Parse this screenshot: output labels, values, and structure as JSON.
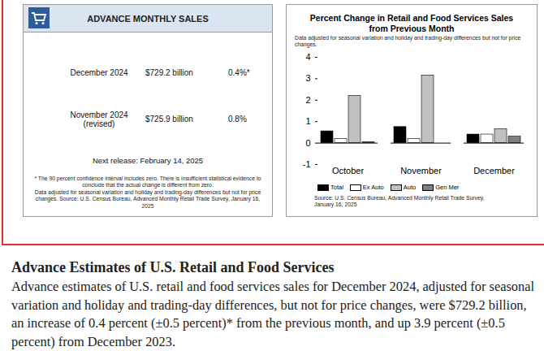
{
  "panel": {
    "title": "ADVANCE MONTHLY SALES",
    "rows": [
      {
        "label": "December 2024",
        "amount": "$729.2 billion",
        "change": "0.4%*"
      },
      {
        "label": "November 2024",
        "label_note": "(revised)",
        "amount": "$725.9 billion",
        "change": "0.8%"
      }
    ],
    "next_release": "Next release: February 14, 2025",
    "footnotes": [
      "* The 90 percent confidence interval includes zero. There is insufficient statistical evidence to conclude that the actual change is different from zero.",
      "Data adjusted for seasonal variation and holiday and trading-day differences but not for price changes. Source: U.S. Census Bureau, Advanced Monthly Retail Trade Survey, January 16, 2025"
    ]
  },
  "chart_data": {
    "type": "bar",
    "title": "Percent Change in Retail and Food Services Sales from Previous Month",
    "subtitle": "Data adjusted for seasonal variation and holiday and trading-day differences but not for price changes.",
    "source": "Source: U.S. Census Bureau, Advanced Monthly Retail Trade Survey, January 16, 2025",
    "categories": [
      "October",
      "November",
      "December"
    ],
    "series": [
      {
        "name": "Total",
        "color": "#000000",
        "values": [
          0.55,
          0.75,
          0.4
        ]
      },
      {
        "name": "Ex Auto",
        "color": "#ffffff",
        "values": [
          0.2,
          0.2,
          0.4
        ]
      },
      {
        "name": "Auto",
        "color": "#c0c0c0",
        "values": [
          2.2,
          3.15,
          0.65
        ]
      },
      {
        "name": "Gen Mer",
        "color": "#808080",
        "values": [
          0.05,
          0.0,
          0.3
        ]
      }
    ],
    "ylim": [
      -1,
      4
    ],
    "yticks": [
      -1,
      0,
      1,
      2,
      3,
      4
    ],
    "grid": false,
    "legend": "bottom"
  },
  "article": {
    "heading": "Advance Estimates of U.S. Retail and Food Services",
    "text": "Advance estimates of U.S. retail and food services sales for December 2024, adjusted for seasonal variation and holiday and trading-day differences, but not for price changes, were $729.2 billion, an increase of 0.4 percent (±0.5 percent)* from the previous month, and up 3.9 percent (±0.5 percent) from December 2023."
  }
}
